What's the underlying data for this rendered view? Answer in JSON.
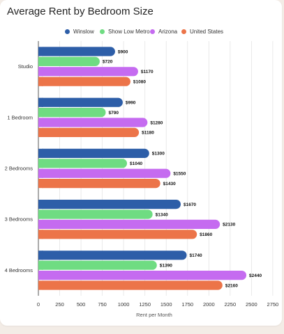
{
  "chart_data": {
    "type": "bar",
    "orientation": "horizontal",
    "title": "Average Rent by Bedroom Size",
    "xlabel": "Rent per Month",
    "ylabel": "",
    "categories": [
      "Studio",
      "1 Bedroom",
      "2 Bedrooms",
      "3 Bedrooms",
      "4 Bedrooms"
    ],
    "series": [
      {
        "name": "Winslow",
        "color": "#2d5ea8",
        "values": [
          900,
          990,
          1300,
          1670,
          1740
        ]
      },
      {
        "name": "Show Low Metro",
        "color": "#6fdc82",
        "values": [
          720,
          790,
          1040,
          1340,
          1390
        ]
      },
      {
        "name": "Arizona",
        "color": "#c56bf0",
        "values": [
          1170,
          1280,
          1550,
          2130,
          2440
        ]
      },
      {
        "name": "United States",
        "color": "#ec7449",
        "values": [
          1080,
          1180,
          1430,
          1860,
          2160
        ]
      }
    ],
    "value_labels": [
      [
        "$900",
        "$720",
        "$1170",
        "$1080"
      ],
      [
        "$990",
        "$790",
        "$1280",
        "$1180"
      ],
      [
        "$1300",
        "$1040",
        "$1550",
        "$1430"
      ],
      [
        "$1670",
        "$1340",
        "$2130",
        "$1860"
      ],
      [
        "$1740",
        "$1390",
        "$2440",
        "$2160"
      ]
    ],
    "xlim": [
      0,
      2800
    ],
    "xticks": [
      0,
      250,
      500,
      750,
      1000,
      1250,
      1500,
      1750,
      2000,
      2250,
      2500,
      2750
    ],
    "grid": true,
    "legend_position": "top"
  }
}
